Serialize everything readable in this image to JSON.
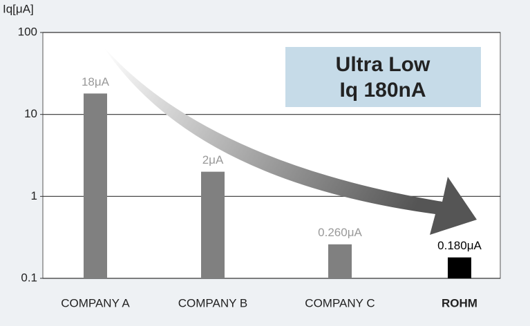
{
  "chart_data": {
    "type": "bar",
    "y_label": "Iq[μA]",
    "annotation": [
      "Ultra Low",
      "Iq 180nA"
    ],
    "categories": [
      "COMPANY A",
      "COMPANY B",
      "COMPANY C",
      "ROHM"
    ],
    "category_styles": [
      "normal",
      "normal",
      "normal",
      "bold"
    ],
    "values": [
      18,
      2,
      0.26,
      0.18
    ],
    "value_labels": [
      "18μA",
      "2μA",
      "0.260μA",
      "0.180μA"
    ],
    "colors": [
      "#808080",
      "#808080",
      "#808080",
      "#000000"
    ],
    "value_label_colors": [
      "#999999",
      "#999999",
      "#999999",
      "#000000"
    ],
    "ylim": [
      0.1,
      100
    ],
    "yticks": [
      0.1,
      1,
      10,
      100
    ],
    "log_y": true,
    "grid": true
  }
}
